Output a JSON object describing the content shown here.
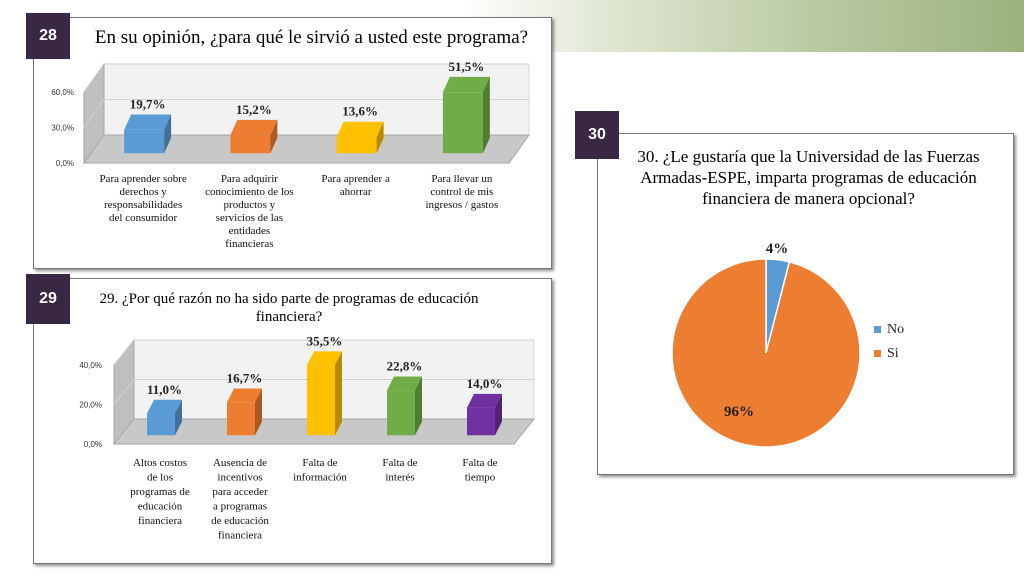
{
  "charts": [
    {
      "number": "28",
      "title": "En su opinión, ¿para qué le sirvió a usted este programa?",
      "chart_data": {
        "type": "bar",
        "categories": [
          [
            "Para aprender sobre",
            "derechos y",
            "responsabilidades",
            "del consumidor"
          ],
          [
            "Para adquirir",
            "conocimiento de los",
            "productos y",
            "servicios de las",
            "entidades",
            "financieras"
          ],
          [
            "Para aprender a",
            "ahorrar"
          ],
          [
            "Para llevar un",
            "control de mis",
            "ingresos / gastos"
          ]
        ],
        "values": [
          19.7,
          15.2,
          13.6,
          51.5
        ],
        "labels": [
          "19,7%",
          "15,2%",
          "13,6%",
          "51,5%"
        ],
        "colors": [
          "#5b9bd5",
          "#ed7d31",
          "#ffc000",
          "#70ad47"
        ],
        "yticks": [
          "0,0%",
          "30,0%",
          "60,0%"
        ],
        "ylim": [
          0,
          60
        ]
      }
    },
    {
      "number": "29",
      "title": "29. ¿Por qué razón no ha sido parte de programas de educación financiera?",
      "chart_data": {
        "type": "bar",
        "categories": [
          [
            "Altos costos",
            "de los",
            "programas de",
            "educación",
            "financiera"
          ],
          [
            "Ausencia de",
            "incentivos",
            "para acceder",
            "a programas",
            "de educación",
            "financiera"
          ],
          [
            "Falta de",
            "información"
          ],
          [
            "Falta de",
            "interés"
          ],
          [
            "Falta de",
            "tiempo"
          ]
        ],
        "values": [
          11.0,
          16.7,
          35.5,
          22.8,
          14.0
        ],
        "labels": [
          "11,0%",
          "16,7%",
          "35,5%",
          "22,8%",
          "14,0%"
        ],
        "colors": [
          "#5b9bd5",
          "#ed7d31",
          "#ffc000",
          "#70ad47",
          "#7030a0"
        ],
        "yticks": [
          "0,0%",
          "20,0%",
          "40,0%"
        ],
        "ylim": [
          0,
          40
        ]
      }
    },
    {
      "number": "30",
      "title": "30. ¿Le gustaría que la Universidad de las Fuerzas Armadas-ESPE, imparta programas de educación financiera de manera opcional?",
      "chart_data": {
        "type": "pie",
        "slices": [
          {
            "name": "No",
            "value": 4,
            "label": "4%",
            "color": "#5b9bd5"
          },
          {
            "name": "Si",
            "value": 96,
            "label": "96%",
            "color": "#ed7d31"
          }
        ],
        "legend": "right"
      }
    }
  ]
}
